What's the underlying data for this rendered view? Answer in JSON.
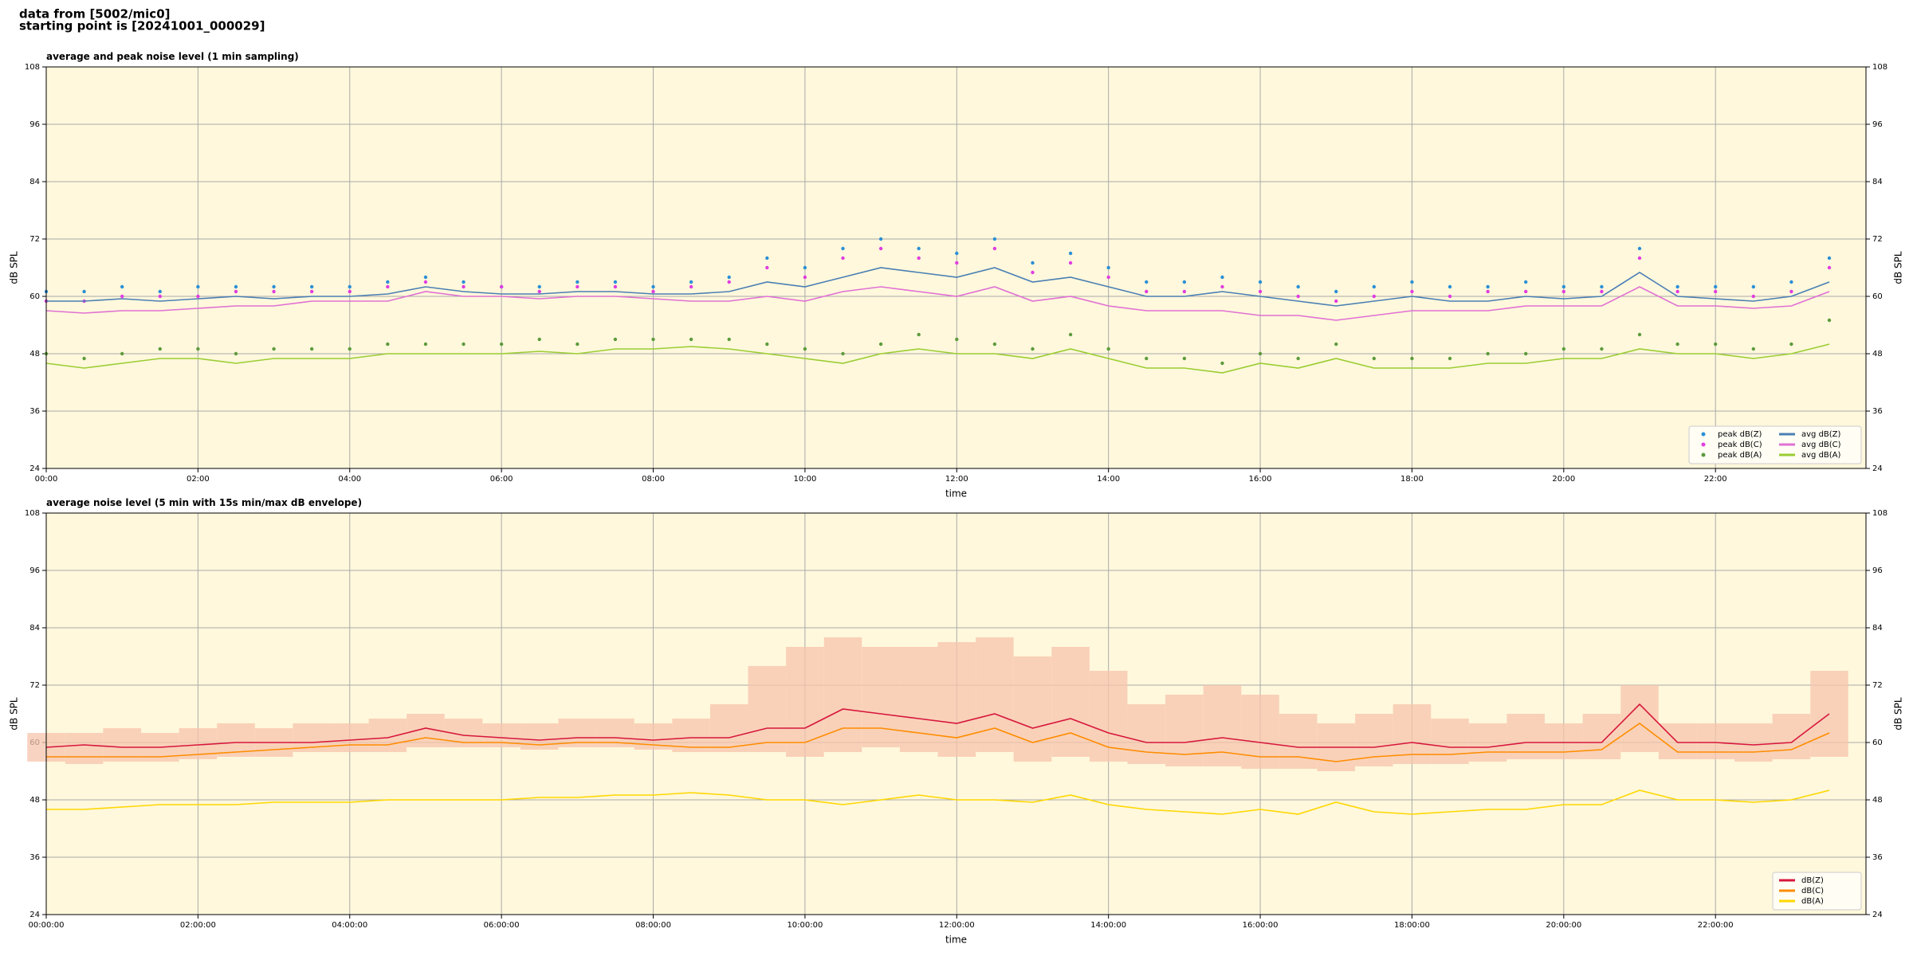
{
  "page_header": {
    "lines": [
      "data from [5002/mic0]",
      "starting point is [20241001_000029]"
    ]
  },
  "chart_data": [
    {
      "type": "line",
      "title": "average and peak noise level (1 min sampling)",
      "x_label": "time",
      "y_label": "dB SPL",
      "x": [
        "00:00",
        "00:30",
        "01:00",
        "01:30",
        "02:00",
        "02:30",
        "03:00",
        "03:30",
        "04:00",
        "04:30",
        "05:00",
        "05:30",
        "06:00",
        "06:30",
        "07:00",
        "07:30",
        "08:00",
        "08:30",
        "09:00",
        "09:30",
        "10:00",
        "10:30",
        "11:00",
        "11:30",
        "12:00",
        "12:30",
        "13:00",
        "13:30",
        "14:00",
        "14:30",
        "15:00",
        "15:30",
        "16:00",
        "16:30",
        "17:00",
        "17:30",
        "18:00",
        "18:30",
        "19:00",
        "19:30",
        "20:00",
        "20:30",
        "21:00",
        "21:30",
        "22:00",
        "22:30",
        "23:00",
        "23:30"
      ],
      "xlim": [
        "00:00",
        "23:59"
      ],
      "xticks": [
        "00:00",
        "02:00",
        "04:00",
        "06:00",
        "08:00",
        "10:00",
        "12:00",
        "14:00",
        "16:00",
        "18:00",
        "20:00",
        "22:00"
      ],
      "ylim": [
        24,
        108
      ],
      "yticks": [
        24,
        36,
        48,
        60,
        72,
        84,
        96,
        108
      ],
      "grid": true,
      "background": "#fff8dc",
      "legend": "lower right",
      "series": [
        {
          "name": "peak dB(Z)",
          "kind": "scatter",
          "color": "#2a8fd6",
          "values": [
            61,
            61,
            62,
            61,
            62,
            62,
            62,
            62,
            62,
            63,
            64,
            63,
            62,
            62,
            63,
            63,
            62,
            63,
            64,
            68,
            66,
            70,
            72,
            70,
            69,
            72,
            67,
            69,
            66,
            63,
            63,
            64,
            63,
            62,
            61,
            62,
            63,
            62,
            62,
            63,
            62,
            62,
            70,
            62,
            62,
            62,
            63,
            68
          ]
        },
        {
          "name": "peak dB(C)",
          "kind": "scatter",
          "color": "#e03ce0",
          "values": [
            59,
            59,
            60,
            60,
            60,
            61,
            61,
            61,
            61,
            62,
            63,
            62,
            62,
            61,
            62,
            62,
            61,
            62,
            63,
            66,
            64,
            68,
            70,
            68,
            67,
            70,
            65,
            67,
            64,
            61,
            61,
            62,
            61,
            60,
            59,
            60,
            61,
            60,
            61,
            61,
            61,
            61,
            68,
            61,
            61,
            60,
            61,
            66
          ]
        },
        {
          "name": "peak dB(A)",
          "kind": "scatter",
          "color": "#5c9a3c",
          "values": [
            48,
            47,
            48,
            49,
            49,
            48,
            49,
            49,
            49,
            50,
            50,
            50,
            50,
            51,
            50,
            51,
            51,
            51,
            51,
            50,
            49,
            48,
            50,
            52,
            51,
            50,
            49,
            52,
            49,
            47,
            47,
            46,
            48,
            47,
            50,
            47,
            47,
            47,
            48,
            48,
            49,
            49,
            52,
            50,
            50,
            49,
            50,
            55
          ]
        },
        {
          "name": "avg dB(Z)",
          "kind": "line",
          "color": "#4a7fb4",
          "values": [
            59,
            59,
            59.5,
            59,
            59.5,
            60,
            59.5,
            60,
            60,
            60.5,
            62,
            61,
            60.5,
            60.5,
            61,
            61,
            60.5,
            60.5,
            61,
            63,
            62,
            64,
            66,
            65,
            64,
            66,
            63,
            64,
            62,
            60,
            60,
            61,
            60,
            59,
            58,
            59,
            60,
            59,
            59,
            60,
            59.5,
            60,
            65,
            60,
            59.5,
            59,
            60,
            63
          ]
        },
        {
          "name": "avg dB(C)",
          "kind": "line",
          "color": "#e070d4",
          "values": [
            57,
            56.5,
            57,
            57,
            57.5,
            58,
            58,
            59,
            59,
            59,
            61,
            60,
            60,
            59.5,
            60,
            60,
            59.5,
            59,
            59,
            60,
            59,
            61,
            62,
            61,
            60,
            62,
            59,
            60,
            58,
            57,
            57,
            57,
            56,
            56,
            55,
            56,
            57,
            57,
            57,
            58,
            58,
            58,
            62,
            58,
            58,
            57.5,
            58,
            61
          ]
        },
        {
          "name": "avg dB(A)",
          "kind": "line",
          "color": "#9acd32",
          "values": [
            46,
            45,
            46,
            47,
            47,
            46,
            47,
            47,
            47,
            48,
            48,
            48,
            48,
            48.5,
            48,
            49,
            49,
            49.5,
            49,
            48,
            47,
            46,
            48,
            49,
            48,
            48,
            47,
            49,
            47,
            45,
            45,
            44,
            46,
            45,
            47,
            45,
            45,
            45,
            46,
            46,
            47,
            47,
            49,
            48,
            48,
            47,
            48,
            50
          ]
        }
      ]
    },
    {
      "type": "line",
      "title": "average noise level (5 min with 15s min/max dB envelope)",
      "x_label": "time",
      "y_label": "dB SPL",
      "x": [
        "00:00:00",
        "00:30:00",
        "01:00:00",
        "01:30:00",
        "02:00:00",
        "02:30:00",
        "03:00:00",
        "03:30:00",
        "04:00:00",
        "04:30:00",
        "05:00:00",
        "05:30:00",
        "06:00:00",
        "06:30:00",
        "07:00:00",
        "07:30:00",
        "08:00:00",
        "08:30:00",
        "09:00:00",
        "09:30:00",
        "10:00:00",
        "10:30:00",
        "11:00:00",
        "11:30:00",
        "12:00:00",
        "12:30:00",
        "13:00:00",
        "13:30:00",
        "14:00:00",
        "14:30:00",
        "15:00:00",
        "15:30:00",
        "16:00:00",
        "16:30:00",
        "17:00:00",
        "17:30:00",
        "18:00:00",
        "18:30:00",
        "19:00:00",
        "19:30:00",
        "20:00:00",
        "20:30:00",
        "21:00:00",
        "21:30:00",
        "22:00:00",
        "22:30:00",
        "23:00:00",
        "23:30:00"
      ],
      "xlim": [
        "00:00:00",
        "23:59:00"
      ],
      "xticks": [
        "00:00:00",
        "02:00:00",
        "04:00:00",
        "06:00:00",
        "08:00:00",
        "10:00:00",
        "12:00:00",
        "14:00:00",
        "16:00:00",
        "18:00:00",
        "20:00:00",
        "22:00:00"
      ],
      "ylim": [
        24,
        108
      ],
      "yticks": [
        24,
        36,
        48,
        60,
        72,
        84,
        96,
        108
      ],
      "grid": true,
      "background": "#fff8dc",
      "legend": "lower right",
      "envelope": {
        "color": "#f7c4ac",
        "high": [
          62,
          62,
          63,
          62,
          63,
          64,
          63,
          64,
          64,
          65,
          66,
          65,
          64,
          64,
          65,
          65,
          64,
          65,
          68,
          76,
          80,
          82,
          80,
          80,
          81,
          82,
          78,
          80,
          75,
          68,
          70,
          72,
          70,
          66,
          64,
          66,
          68,
          65,
          64,
          66,
          64,
          66,
          72,
          64,
          64,
          64,
          66,
          75
        ],
        "low": [
          56,
          55.5,
          56,
          56,
          56.5,
          57,
          57,
          58,
          58,
          58,
          59,
          59,
          59,
          58.5,
          59,
          59,
          58.5,
          58,
          58,
          58,
          57,
          58,
          59,
          58,
          57,
          58,
          56,
          57,
          56,
          55.5,
          55,
          55,
          54.5,
          54.5,
          54,
          55,
          55.5,
          55.5,
          56,
          56.5,
          56.5,
          56.5,
          58,
          56.5,
          56.5,
          56,
          56.5,
          57
        ]
      },
      "series": [
        {
          "name": "dB(Z)",
          "kind": "line",
          "color": "#d7163c",
          "values": [
            59,
            59.5,
            59,
            59,
            59.5,
            60,
            60,
            60,
            60.5,
            61,
            63,
            61.5,
            61,
            60.5,
            61,
            61,
            60.5,
            61,
            61,
            63,
            63,
            67,
            66,
            65,
            64,
            66,
            63,
            65,
            62,
            60,
            60,
            61,
            60,
            59,
            59,
            59,
            60,
            59,
            59,
            60,
            60,
            60,
            68,
            60,
            60,
            59.5,
            60,
            66
          ]
        },
        {
          "name": "dB(C)",
          "kind": "line",
          "color": "#ff8c00",
          "values": [
            57,
            57,
            57,
            57,
            57.5,
            58,
            58.5,
            59,
            59.5,
            59.5,
            61,
            60,
            60,
            59.5,
            60,
            60,
            59.5,
            59,
            59,
            60,
            60,
            63,
            63,
            62,
            61,
            63,
            60,
            62,
            59,
            58,
            57.5,
            58,
            57,
            57,
            56,
            57,
            57.5,
            57.5,
            58,
            58,
            58,
            58.5,
            64,
            58,
            58,
            58,
            58.5,
            62
          ]
        },
        {
          "name": "dB(A)",
          "kind": "line",
          "color": "#ffd700",
          "values": [
            46,
            46,
            46.5,
            47,
            47,
            47,
            47.5,
            47.5,
            47.5,
            48,
            48,
            48,
            48,
            48.5,
            48.5,
            49,
            49,
            49.5,
            49,
            48,
            48,
            47,
            48,
            49,
            48,
            48,
            47.5,
            49,
            47,
            46,
            45.5,
            45,
            46,
            45,
            47.5,
            45.5,
            45,
            45.5,
            46,
            46,
            47,
            47,
            50,
            48,
            48,
            47.5,
            48,
            50
          ]
        }
      ]
    }
  ]
}
